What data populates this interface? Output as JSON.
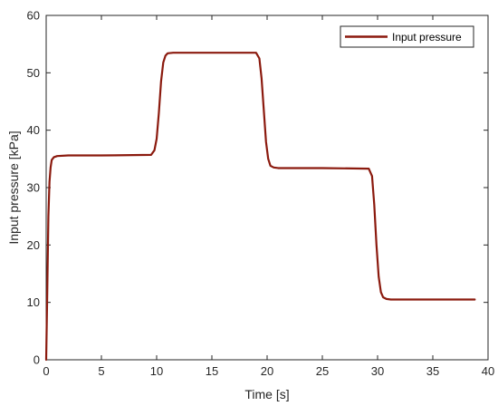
{
  "chart_data": {
    "type": "line",
    "title": "",
    "xlabel": "Time [s]",
    "ylabel": "Input pressure [kPa]",
    "xlim": [
      0,
      40
    ],
    "ylim": [
      0,
      60
    ],
    "xticks": [
      0,
      5,
      10,
      15,
      20,
      25,
      30,
      35,
      40
    ],
    "yticks": [
      0,
      10,
      20,
      30,
      40,
      50,
      60
    ],
    "grid": false,
    "legend_position": "top-right",
    "series": [
      {
        "name": "Input pressure",
        "color": "#8b1a0e",
        "x": [
          0,
          0.1,
          0.2,
          0.3,
          0.4,
          0.5,
          0.7,
          1.0,
          2.0,
          5.0,
          9.5,
          9.8,
          10.0,
          10.2,
          10.4,
          10.6,
          10.8,
          11.0,
          11.5,
          12.0,
          15.0,
          19.0,
          19.3,
          19.5,
          19.7,
          19.9,
          20.1,
          20.3,
          20.6,
          21.0,
          25.0,
          29.2,
          29.5,
          29.7,
          29.9,
          30.1,
          30.3,
          30.5,
          30.8,
          31.2,
          35.0,
          38.8
        ],
        "y": [
          0,
          12,
          25,
          31,
          33.5,
          34.8,
          35.3,
          35.5,
          35.6,
          35.6,
          35.7,
          36.5,
          38.5,
          43.0,
          48.5,
          51.8,
          53.0,
          53.4,
          53.5,
          53.5,
          53.5,
          53.5,
          52.5,
          49.0,
          43.5,
          38.0,
          35.0,
          33.8,
          33.5,
          33.4,
          33.4,
          33.3,
          32.0,
          27.0,
          20.0,
          14.5,
          11.8,
          10.9,
          10.6,
          10.5,
          10.5,
          10.5
        ]
      }
    ]
  }
}
